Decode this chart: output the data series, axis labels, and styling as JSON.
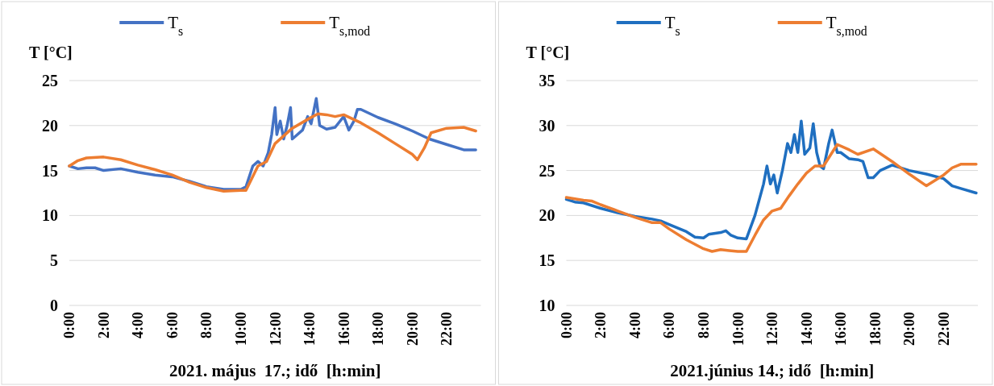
{
  "chart_data": [
    {
      "type": "line",
      "xlabel": "2021. május  17.; idő  [h:min]",
      "ylabel": "T  [°C]",
      "xlim": [
        0,
        24
      ],
      "xticks": [
        {
          "value": 0,
          "label": "0:00"
        },
        {
          "value": 2,
          "label": "2:00"
        },
        {
          "value": 4,
          "label": "4:00"
        },
        {
          "value": 6,
          "label": "6:00"
        },
        {
          "value": 8,
          "label": "8:00"
        },
        {
          "value": 10,
          "label": "10:00"
        },
        {
          "value": 12,
          "label": "12:00"
        },
        {
          "value": 14,
          "label": "14:00"
        },
        {
          "value": 16,
          "label": "16:00"
        },
        {
          "value": 18,
          "label": "18:00"
        },
        {
          "value": 20,
          "label": "20:00"
        },
        {
          "value": 22,
          "label": "22:00"
        }
      ],
      "ylim": [
        0,
        25
      ],
      "yticks": [
        0,
        5,
        10,
        15,
        20,
        25
      ],
      "grid": "y",
      "legend": "top",
      "marker": "none",
      "line_style": "solid",
      "series": [
        {
          "name": "T$_{s}$",
          "color": "#4472c4",
          "x": [
            0,
            0.5,
            1,
            1.5,
            2,
            3,
            4,
            5,
            6,
            7,
            8,
            9,
            10,
            10.3,
            10.7,
            11,
            11.3,
            11.6,
            11.8,
            12,
            12.1,
            12.3,
            12.5,
            12.7,
            12.9,
            13,
            13.3,
            13.6,
            13.9,
            14.1,
            14.4,
            14.6,
            15,
            15.5,
            16,
            16.3,
            16.6,
            16.8,
            17,
            18,
            19,
            20,
            21,
            22,
            23,
            23.7
          ],
          "values": [
            15.5,
            15.2,
            15.3,
            15.3,
            15,
            15.2,
            14.8,
            14.5,
            14.3,
            13.8,
            13.2,
            12.9,
            12.9,
            13.2,
            15.5,
            16,
            15.5,
            17,
            19,
            22,
            19,
            20.5,
            18.5,
            20,
            22,
            18.5,
            19,
            19.5,
            21,
            20.2,
            23,
            20,
            19.6,
            19.8,
            21,
            19.5,
            20.5,
            21.8,
            21.8,
            20.9,
            20.2,
            19.4,
            18.5,
            17.9,
            17.3,
            17.3
          ]
        },
        {
          "name": "T$_{s,mod}$",
          "color": "#ed7d31",
          "x": [
            0,
            0.5,
            1,
            2,
            3,
            4,
            5,
            6,
            7,
            8,
            9,
            10,
            10.3,
            11,
            11.5,
            12,
            13,
            14,
            14.5,
            15,
            15.5,
            16,
            17,
            18,
            19,
            20,
            20.3,
            20.7,
            21.1,
            22,
            23,
            23.7
          ],
          "values": [
            15.5,
            16.1,
            16.4,
            16.5,
            16.2,
            15.6,
            15.1,
            14.5,
            13.7,
            13.1,
            12.7,
            12.8,
            12.8,
            15.5,
            16,
            18,
            19.7,
            20.8,
            21.3,
            21.2,
            21,
            21.2,
            20.3,
            19.2,
            18,
            16.8,
            16.2,
            17.5,
            19.2,
            19.7,
            19.8,
            19.4
          ]
        }
      ]
    },
    {
      "type": "line",
      "xlabel": "2021.június 14.; idő  [h:min]",
      "ylabel": "T  [°C]",
      "xlim": [
        0,
        24
      ],
      "xticks": [
        {
          "value": 0,
          "label": "0:00"
        },
        {
          "value": 2,
          "label": "2:00"
        },
        {
          "value": 4,
          "label": "4:00"
        },
        {
          "value": 6,
          "label": "6:00"
        },
        {
          "value": 8,
          "label": "8:00"
        },
        {
          "value": 10,
          "label": "10:00"
        },
        {
          "value": 12,
          "label": "12:00"
        },
        {
          "value": 14,
          "label": "14:00"
        },
        {
          "value": 16,
          "label": "16:00"
        },
        {
          "value": 18,
          "label": "18:00"
        },
        {
          "value": 20,
          "label": "20:00"
        },
        {
          "value": 22,
          "label": "22:00"
        }
      ],
      "ylim": [
        10,
        35
      ],
      "yticks": [
        10,
        15,
        20,
        25,
        30,
        35
      ],
      "grid": "y",
      "legend": "top",
      "marker": "none",
      "line_style": "solid",
      "series": [
        {
          "name": "T$_{s}$",
          "color": "#1f6fc0",
          "x": [
            0,
            0.5,
            1,
            2,
            3,
            4,
            5,
            5.5,
            6,
            7,
            7.5,
            8,
            8.3,
            9,
            9.3,
            9.6,
            10,
            10.5,
            11,
            11.5,
            11.7,
            11.9,
            12.1,
            12.3,
            12.6,
            12.9,
            13.1,
            13.3,
            13.5,
            13.7,
            13.9,
            14.2,
            14.4,
            14.6,
            14.8,
            15,
            15.3,
            15.5,
            15.8,
            16,
            16.5,
            17,
            17.3,
            17.6,
            17.9,
            18.3,
            19,
            20,
            21,
            22,
            22.5,
            23,
            23.9
          ],
          "values": [
            21.8,
            21.5,
            21.4,
            20.8,
            20.3,
            19.9,
            19.6,
            19.4,
            19,
            18.2,
            17.6,
            17.5,
            17.9,
            18.1,
            18.3,
            17.8,
            17.5,
            17.4,
            20,
            23.5,
            25.5,
            23.5,
            24.5,
            22.5,
            25,
            28,
            27,
            29,
            27,
            30.5,
            26.8,
            27.5,
            30.2,
            27,
            25.5,
            25.2,
            28,
            29.5,
            27,
            27,
            26.3,
            26.2,
            26,
            24.2,
            24.2,
            25,
            25.6,
            25,
            24.6,
            24.1,
            23.3,
            23,
            22.5
          ]
        },
        {
          "name": "T$_{s,mod}$",
          "color": "#ed7d31",
          "x": [
            0,
            1,
            1.5,
            2,
            3,
            4,
            5,
            5.5,
            6,
            7,
            8,
            8.5,
            9,
            9.5,
            10,
            10.5,
            11,
            11.5,
            12,
            12.5,
            13,
            13.5,
            14,
            14.5,
            15,
            15.5,
            15.8,
            16.5,
            17,
            17.9,
            19,
            20,
            21,
            22,
            22.5,
            23,
            23.9
          ],
          "values": [
            22,
            21.7,
            21.6,
            21.2,
            20.5,
            19.8,
            19.2,
            19.2,
            18.5,
            17.3,
            16.3,
            16,
            16.2,
            16.1,
            16,
            16,
            17.8,
            19.5,
            20.5,
            20.8,
            22.2,
            23.5,
            24.7,
            25.5,
            25.5,
            27,
            27.9,
            27.3,
            26.8,
            27.4,
            26,
            24.6,
            23.3,
            24.5,
            25.3,
            25.7,
            25.7
          ]
        }
      ]
    }
  ]
}
